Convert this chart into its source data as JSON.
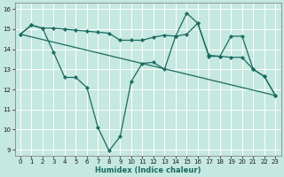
{
  "xlabel": "Humidex (Indice chaleur)",
  "xlim": [
    -0.5,
    23.5
  ],
  "ylim": [
    8.7,
    16.3
  ],
  "yticks": [
    9,
    10,
    11,
    12,
    13,
    14,
    15,
    16
  ],
  "xticks": [
    0,
    1,
    2,
    3,
    4,
    5,
    6,
    7,
    8,
    9,
    10,
    11,
    12,
    13,
    14,
    15,
    16,
    17,
    18,
    19,
    20,
    21,
    22,
    23
  ],
  "bg_color": "#c5e8e0",
  "grid_color": "#ffffff",
  "line_color": "#1a6b60",
  "line1_x": [
    0,
    1,
    2,
    3,
    4,
    5,
    6,
    7,
    8,
    9,
    10,
    11,
    12,
    13,
    14,
    15,
    16,
    17,
    18,
    19,
    20,
    21,
    22,
    23
  ],
  "line1_y": [
    14.75,
    15.2,
    15.05,
    13.85,
    12.6,
    12.6,
    12.1,
    10.1,
    8.95,
    9.65,
    12.4,
    13.3,
    13.35,
    13.0,
    14.65,
    15.8,
    15.3,
    13.7,
    13.65,
    13.6,
    13.6,
    13.0,
    12.65,
    11.7
  ],
  "line2_x": [
    0,
    1,
    2,
    3,
    4,
    5,
    6,
    7,
    8,
    9,
    10,
    11,
    12,
    13,
    14,
    15,
    16,
    17,
    18,
    19,
    20,
    21,
    22,
    23
  ],
  "line2_y": [
    14.75,
    15.2,
    15.05,
    15.05,
    15.0,
    14.95,
    14.9,
    14.85,
    14.8,
    14.45,
    14.45,
    14.45,
    14.6,
    14.7,
    14.65,
    14.75,
    15.3,
    13.65,
    13.65,
    14.65,
    14.65,
    13.0,
    12.65,
    11.7
  ],
  "line3_x": [
    0,
    23
  ],
  "line3_y": [
    14.75,
    11.7
  ]
}
